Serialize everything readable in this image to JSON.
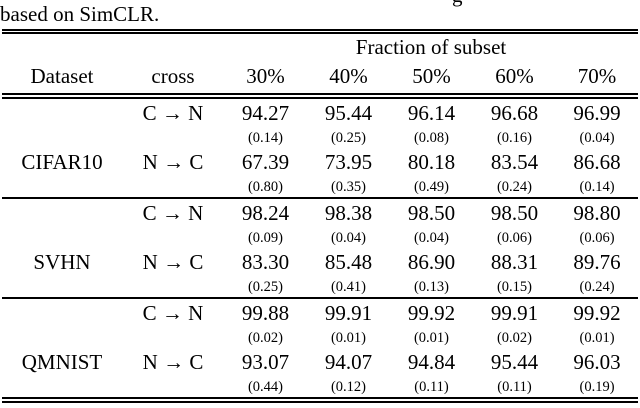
{
  "caption": {
    "overflow_fragment": "g",
    "text": "based on SimCLR."
  },
  "table": {
    "group_header": "Fraction of subset",
    "columns": [
      "Dataset",
      "cross",
      "30%",
      "40%",
      "50%",
      "60%",
      "70%"
    ],
    "blocks": [
      {
        "dataset": "CIFAR10",
        "rows": [
          {
            "type": "mean",
            "cross": "C → N",
            "values": [
              "94.27",
              "95.44",
              "96.14",
              "96.68",
              "96.99"
            ]
          },
          {
            "type": "std",
            "cross": "",
            "values": [
              "(0.14)",
              "(0.25)",
              "(0.08)",
              "(0.16)",
              "(0.04)"
            ]
          },
          {
            "type": "mean",
            "cross": "N → C",
            "values": [
              "67.39",
              "73.95",
              "80.18",
              "83.54",
              "86.68"
            ]
          },
          {
            "type": "std",
            "cross": "",
            "values": [
              "(0.80)",
              "(0.35)",
              "(0.49)",
              "(0.24)",
              "(0.14)"
            ]
          }
        ]
      },
      {
        "dataset": "SVHN",
        "rows": [
          {
            "type": "mean",
            "cross": "C → N",
            "values": [
              "98.24",
              "98.38",
              "98.50",
              "98.50",
              "98.80"
            ]
          },
          {
            "type": "std",
            "cross": "",
            "values": [
              "(0.09)",
              "(0.04)",
              "(0.04)",
              "(0.06)",
              "(0.06)"
            ]
          },
          {
            "type": "mean",
            "cross": "N → C",
            "values": [
              "83.30",
              "85.48",
              "86.90",
              "88.31",
              "89.76"
            ]
          },
          {
            "type": "std",
            "cross": "",
            "values": [
              "(0.25)",
              "(0.41)",
              "(0.13)",
              "(0.15)",
              "(0.24)"
            ]
          }
        ]
      },
      {
        "dataset": "QMNIST",
        "rows": [
          {
            "type": "mean",
            "cross": "C → N",
            "values": [
              "99.88",
              "99.91",
              "99.92",
              "99.91",
              "99.92"
            ]
          },
          {
            "type": "std",
            "cross": "",
            "values": [
              "(0.02)",
              "(0.01)",
              "(0.01)",
              "(0.02)",
              "(0.01)"
            ]
          },
          {
            "type": "mean",
            "cross": "N → C",
            "values": [
              "93.07",
              "94.07",
              "94.84",
              "95.44",
              "96.03"
            ]
          },
          {
            "type": "std",
            "cross": "",
            "values": [
              "(0.44)",
              "(0.12)",
              "(0.11)",
              "(0.11)",
              "(0.19)"
            ]
          }
        ]
      }
    ]
  }
}
